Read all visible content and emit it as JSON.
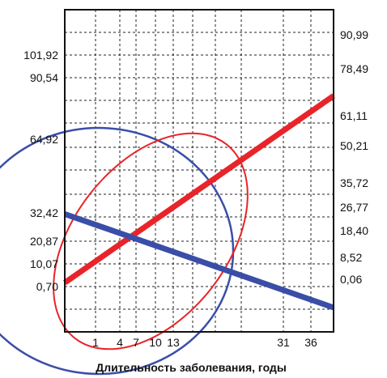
{
  "chart_data": {
    "type": "line",
    "title": "",
    "xlabel": "Длительность заболевания, годы",
    "ylabel": "",
    "grid": true,
    "legend": "none",
    "x_tick_labels": [
      "1",
      "4",
      "7",
      "10",
      "13",
      "31",
      "36"
    ],
    "y_left_tick_labels": [
      "101,92",
      "90,54",
      "64,92",
      "32,42",
      "20,87",
      "10,07",
      "0,70"
    ],
    "y_right_tick_labels": [
      "90,99",
      "78,49",
      "61,11",
      "50,21",
      "35,72",
      "26,77",
      "18,40",
      "8,52",
      "0,06"
    ],
    "series": [
      {
        "color": "#e8242a",
        "kind": "regression-line",
        "x": [
          -3,
          42
        ],
        "y_left": [
          2.4,
          84.1
        ]
      },
      {
        "color": "#3a4ea8",
        "kind": "regression-line",
        "x": [
          -3,
          42
        ],
        "y_left": [
          32.4,
          -8.5
        ]
      }
    ],
    "ellipses": [
      {
        "color": "#e8242a",
        "label": "red-ellipse"
      },
      {
        "color": "#3a4ea8",
        "label": "blue-ellipse"
      }
    ]
  }
}
